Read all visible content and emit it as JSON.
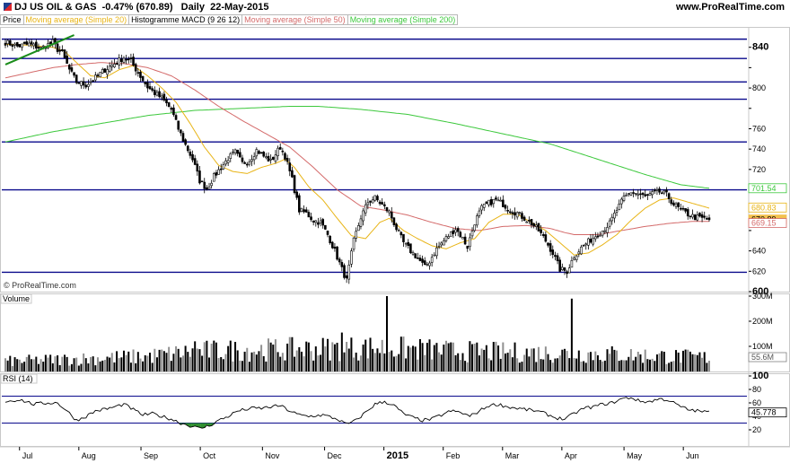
{
  "header": {
    "title": "DJ US OIL & GAS",
    "change": "-0.47% (670.89)",
    "period": "Daily",
    "date": "22-May-2015",
    "site": "www.ProRealTime.com",
    "legend": [
      {
        "label": "Price",
        "color": "#000000"
      },
      {
        "label": "Moving average (Simple 20)",
        "color": "#e8b416"
      },
      {
        "label": "Histogramme MACD (9 26 12)",
        "color": "#000000"
      },
      {
        "label": "Moving average (Simple 50)",
        "color": "#d46a6a"
      },
      {
        "label": "Moving average (Simple 200)",
        "color": "#3cc83c"
      }
    ]
  },
  "watermark": "© ProRealTime.com",
  "volume_label": "Volume",
  "rsi_label": "RSI (14)",
  "colors": {
    "line": "#0a0a8c",
    "ma20": "#e8b416",
    "ma50": "#d46a6a",
    "ma200": "#3cc83c",
    "trend": "#1a8c1a",
    "volume": "#000000",
    "rsi": "#000000",
    "rsi_fill_low": "#2f8f2f",
    "badge_price": "#f2c14e"
  },
  "chart_data": [
    {
      "type": "candlestick",
      "title": "DJ US OIL & GAS",
      "ylim": [
        600,
        860
      ],
      "y_ticks": [
        600,
        620,
        640,
        660,
        680,
        700,
        720,
        740,
        760,
        780,
        800,
        820,
        840
      ],
      "y_tick_labels": [
        "600",
        "620",
        "640",
        "",
        "",
        "",
        "720",
        "740",
        "760",
        "",
        "800",
        "",
        "840"
      ],
      "x_labels": [
        "Jul",
        "Aug",
        "Sep",
        "Oct",
        "Nov",
        "Dec",
        "2015",
        "Feb",
        "Mar",
        "Apr",
        "May",
        "Jun"
      ],
      "horizontal_lines": [
        848,
        829,
        806,
        789,
        747,
        700,
        619
      ],
      "badges": [
        {
          "text": "701.54",
          "value": 701.54,
          "color": "#3cc83c"
        },
        {
          "text": "680.83",
          "value": 680.83,
          "color": "#e8b416"
        },
        {
          "text": "670.89",
          "value": 670.89,
          "color": "#f2c14e"
        },
        {
          "text": "669.15",
          "value": 669.15,
          "color": "#d46a6a"
        }
      ],
      "close_anchors": [
        [
          0,
          845
        ],
        [
          5,
          841
        ],
        [
          10,
          843
        ],
        [
          15,
          839
        ],
        [
          20,
          845
        ],
        [
          22,
          838
        ],
        [
          24,
          834
        ],
        [
          27,
          818
        ],
        [
          30,
          806
        ],
        [
          34,
          803
        ],
        [
          38,
          810
        ],
        [
          42,
          818
        ],
        [
          46,
          824
        ],
        [
          50,
          830
        ],
        [
          53,
          826
        ],
        [
          56,
          815
        ],
        [
          60,
          801
        ],
        [
          63,
          795
        ],
        [
          66,
          790
        ],
        [
          70,
          779
        ],
        [
          73,
          760
        ],
        [
          76,
          744
        ],
        [
          79,
          730
        ],
        [
          82,
          709
        ],
        [
          85,
          701
        ],
        [
          88,
          713
        ],
        [
          91,
          722
        ],
        [
          94,
          731
        ],
        [
          97,
          737
        ],
        [
          100,
          726
        ],
        [
          103,
          729
        ],
        [
          106,
          739
        ],
        [
          109,
          733
        ],
        [
          112,
          728
        ],
        [
          116,
          742
        ],
        [
          118,
          733
        ],
        [
          121,
          710
        ],
        [
          124,
          680
        ],
        [
          127,
          677
        ],
        [
          130,
          670
        ],
        [
          133,
          668
        ],
        [
          136,
          656
        ],
        [
          139,
          640
        ],
        [
          142,
          622
        ],
        [
          144,
          611
        ],
        [
          147,
          650
        ],
        [
          150,
          673
        ],
        [
          153,
          688
        ],
        [
          156,
          692
        ],
        [
          159,
          685
        ],
        [
          162,
          678
        ],
        [
          165,
          662
        ],
        [
          168,
          648
        ],
        [
          171,
          640
        ],
        [
          174,
          633
        ],
        [
          177,
          624
        ],
        [
          179,
          630
        ],
        [
          182,
          642
        ],
        [
          185,
          650
        ],
        [
          187,
          655
        ],
        [
          190,
          662
        ],
        [
          193,
          652
        ],
        [
          195,
          644
        ],
        [
          198,
          668
        ],
        [
          201,
          682
        ],
        [
          204,
          687
        ],
        [
          207,
          690
        ],
        [
          210,
          686
        ],
        [
          213,
          680
        ],
        [
          216,
          677
        ],
        [
          219,
          672
        ],
        [
          222,
          667
        ],
        [
          225,
          660
        ],
        [
          228,
          650
        ],
        [
          231,
          638
        ],
        [
          234,
          622
        ],
        [
          237,
          620
        ],
        [
          240,
          635
        ],
        [
          243,
          643
        ],
        [
          246,
          649
        ],
        [
          249,
          655
        ],
        [
          252,
          660
        ],
        [
          255,
          667
        ],
        [
          258,
          680
        ],
        [
          261,
          692
        ],
        [
          264,
          698
        ],
        [
          267,
          696
        ],
        [
          270,
          693
        ],
        [
          273,
          696
        ],
        [
          276,
          698
        ],
        [
          279,
          695
        ],
        [
          282,
          686
        ],
        [
          285,
          680
        ],
        [
          288,
          676
        ],
        [
          291,
          673
        ],
        [
          294,
          672
        ],
        [
          297,
          671
        ]
      ],
      "ma20_anchors": [
        [
          0,
          843
        ],
        [
          10,
          842
        ],
        [
          20,
          840
        ],
        [
          25,
          836
        ],
        [
          30,
          825
        ],
        [
          36,
          812
        ],
        [
          42,
          810
        ],
        [
          48,
          818
        ],
        [
          54,
          822
        ],
        [
          60,
          812
        ],
        [
          66,
          800
        ],
        [
          72,
          786
        ],
        [
          78,
          765
        ],
        [
          84,
          742
        ],
        [
          90,
          724
        ],
        [
          96,
          718
        ],
        [
          102,
          716
        ],
        [
          108,
          722
        ],
        [
          114,
          726
        ],
        [
          118,
          730
        ],
        [
          122,
          722
        ],
        [
          128,
          703
        ],
        [
          134,
          690
        ],
        [
          140,
          672
        ],
        [
          146,
          655
        ],
        [
          152,
          652
        ],
        [
          158,
          668
        ],
        [
          162,
          672
        ],
        [
          168,
          660
        ],
        [
          174,
          652
        ],
        [
          180,
          645
        ],
        [
          186,
          642
        ],
        [
          192,
          648
        ],
        [
          198,
          652
        ],
        [
          204,
          668
        ],
        [
          210,
          676
        ],
        [
          216,
          676
        ],
        [
          222,
          668
        ],
        [
          228,
          660
        ],
        [
          234,
          648
        ],
        [
          240,
          636
        ],
        [
          246,
          638
        ],
        [
          252,
          646
        ],
        [
          258,
          656
        ],
        [
          264,
          670
        ],
        [
          270,
          682
        ],
        [
          276,
          690
        ],
        [
          282,
          692
        ],
        [
          288,
          688
        ],
        [
          294,
          684
        ],
        [
          297,
          682
        ]
      ],
      "ma50_anchors": [
        [
          0,
          810
        ],
        [
          10,
          815
        ],
        [
          20,
          820
        ],
        [
          30,
          823
        ],
        [
          40,
          825
        ],
        [
          50,
          824
        ],
        [
          60,
          820
        ],
        [
          70,
          812
        ],
        [
          80,
          798
        ],
        [
          90,
          782
        ],
        [
          100,
          768
        ],
        [
          110,
          755
        ],
        [
          120,
          742
        ],
        [
          130,
          722
        ],
        [
          140,
          700
        ],
        [
          150,
          684
        ],
        [
          160,
          680
        ],
        [
          170,
          675
        ],
        [
          180,
          668
        ],
        [
          190,
          662
        ],
        [
          200,
          660
        ],
        [
          210,
          664
        ],
        [
          220,
          665
        ],
        [
          230,
          662
        ],
        [
          236,
          658
        ],
        [
          240,
          656
        ],
        [
          250,
          656
        ],
        [
          260,
          660
        ],
        [
          270,
          664
        ],
        [
          280,
          667
        ],
        [
          290,
          669
        ],
        [
          297,
          669
        ]
      ],
      "ma200_anchors": [
        [
          0,
          747
        ],
        [
          20,
          757
        ],
        [
          40,
          765
        ],
        [
          60,
          773
        ],
        [
          80,
          778
        ],
        [
          100,
          780
        ],
        [
          120,
          782
        ],
        [
          132,
          782
        ],
        [
          150,
          779
        ],
        [
          170,
          774
        ],
        [
          190,
          765
        ],
        [
          210,
          755
        ],
        [
          230,
          745
        ],
        [
          250,
          730
        ],
        [
          270,
          715
        ],
        [
          285,
          705
        ],
        [
          297,
          701.5
        ]
      ],
      "trendline": [
        [
          0,
          823
        ],
        [
          29,
          852
        ]
      ]
    },
    {
      "type": "bar",
      "title": "Volume",
      "ylim": [
        0,
        300000000
      ],
      "y_ticks": [
        100000000,
        200000000,
        300000000
      ],
      "y_tick_labels": [
        "100M",
        "200M",
        "300M"
      ],
      "last_value": "55.6M",
      "spikes": [
        [
          80,
          120000000
        ],
        [
          142,
          155000000
        ],
        [
          161,
          300000000
        ],
        [
          239,
          290000000
        ]
      ],
      "base_anchors": [
        [
          0,
          40000000
        ],
        [
          30,
          50000000
        ],
        [
          60,
          60000000
        ],
        [
          80,
          80000000
        ],
        [
          100,
          85000000
        ],
        [
          130,
          90000000
        ],
        [
          160,
          95000000
        ],
        [
          190,
          80000000
        ],
        [
          220,
          75000000
        ],
        [
          250,
          70000000
        ],
        [
          280,
          60000000
        ],
        [
          297,
          55000000
        ]
      ]
    },
    {
      "type": "line",
      "title": "RSI (14)",
      "ylim": [
        0,
        100
      ],
      "y_ticks": [
        20,
        40,
        60,
        80,
        100
      ],
      "y_tick_labels": [
        "20",
        "40",
        "60",
        "80",
        "100"
      ],
      "levels": [
        30,
        70
      ],
      "last_value": "45.778",
      "anchors": [
        [
          0,
          62
        ],
        [
          6,
          65
        ],
        [
          12,
          58
        ],
        [
          18,
          60
        ],
        [
          22,
          60
        ],
        [
          26,
          48
        ],
        [
          30,
          34
        ],
        [
          34,
          40
        ],
        [
          38,
          48
        ],
        [
          44,
          52
        ],
        [
          50,
          58
        ],
        [
          54,
          50
        ],
        [
          58,
          42
        ],
        [
          62,
          44
        ],
        [
          66,
          40
        ],
        [
          70,
          36
        ],
        [
          74,
          30
        ],
        [
          78,
          26
        ],
        [
          82,
          22
        ],
        [
          86,
          26
        ],
        [
          90,
          34
        ],
        [
          94,
          40
        ],
        [
          98,
          48
        ],
        [
          104,
          52
        ],
        [
          108,
          52
        ],
        [
          112,
          54
        ],
        [
          116,
          56
        ],
        [
          120,
          48
        ],
        [
          124,
          42
        ],
        [
          128,
          40
        ],
        [
          134,
          42
        ],
        [
          140,
          36
        ],
        [
          144,
          28
        ],
        [
          148,
          34
        ],
        [
          152,
          46
        ],
        [
          156,
          58
        ],
        [
          160,
          62
        ],
        [
          164,
          56
        ],
        [
          168,
          44
        ],
        [
          172,
          38
        ],
        [
          176,
          34
        ],
        [
          180,
          36
        ],
        [
          184,
          42
        ],
        [
          188,
          48
        ],
        [
          192,
          46
        ],
        [
          196,
          40
        ],
        [
          200,
          48
        ],
        [
          204,
          56
        ],
        [
          208,
          58
        ],
        [
          212,
          54
        ],
        [
          216,
          52
        ],
        [
          220,
          50
        ],
        [
          224,
          48
        ],
        [
          228,
          44
        ],
        [
          232,
          38
        ],
        [
          236,
          36
        ],
        [
          240,
          44
        ],
        [
          244,
          52
        ],
        [
          248,
          54
        ],
        [
          252,
          58
        ],
        [
          256,
          60
        ],
        [
          260,
          66
        ],
        [
          264,
          68
        ],
        [
          268,
          62
        ],
        [
          272,
          62
        ],
        [
          276,
          66
        ],
        [
          280,
          64
        ],
        [
          284,
          56
        ],
        [
          288,
          50
        ],
        [
          292,
          48
        ],
        [
          297,
          46
        ]
      ]
    }
  ]
}
